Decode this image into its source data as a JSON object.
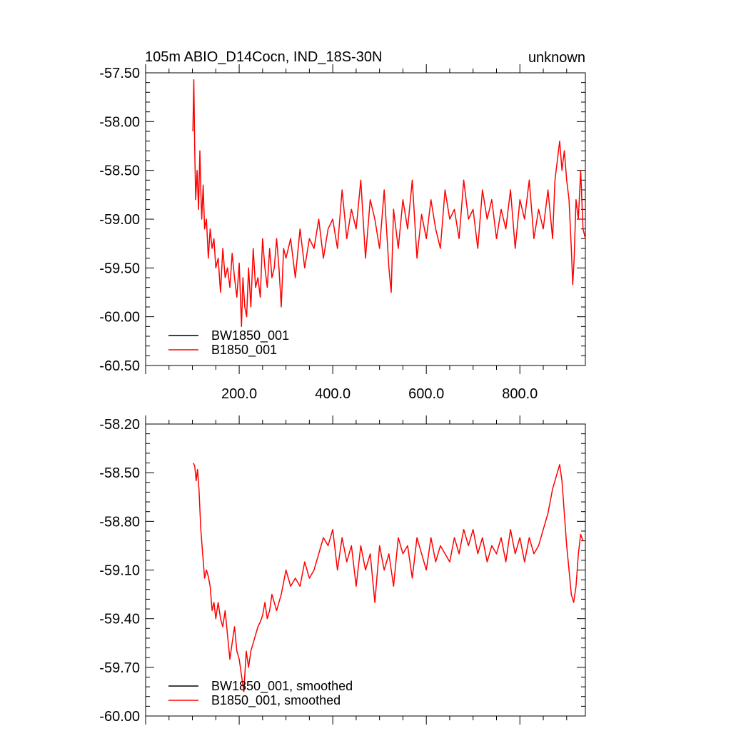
{
  "chart_data": [
    {
      "type": "line",
      "title": "105m ABIO_D14Cocn, IND_18S-30N",
      "subtitle_right": "unknown",
      "xlabel": "",
      "ylabel": "",
      "xlim": [
        0,
        940
      ],
      "ylim": [
        -60.5,
        -57.5
      ],
      "xticks": [
        200,
        400,
        600,
        800
      ],
      "xtick_labels": [
        "200.0",
        "400.0",
        "600.0",
        "800.0"
      ],
      "show_xtick_labels": true,
      "yticks": [
        -57.5,
        -58.0,
        -58.5,
        -59.0,
        -59.5,
        -60.0,
        -60.5
      ],
      "ytick_labels": [
        "-57.50",
        "-58.00",
        "-58.50",
        "-59.00",
        "-59.50",
        "-60.00",
        "-60.50"
      ],
      "grid": false,
      "legend_position": "bottom-left",
      "series": [
        {
          "name": "BW1850_001",
          "color": "#000000",
          "x": [],
          "y": []
        },
        {
          "name": "B1850_001",
          "color": "#ff0000",
          "x": [
            101,
            103,
            105,
            107,
            110,
            113,
            116,
            118,
            120,
            123,
            126,
            130,
            134,
            138,
            142,
            146,
            150,
            155,
            160,
            165,
            170,
            175,
            180,
            185,
            190,
            195,
            200,
            205,
            208,
            212,
            216,
            220,
            225,
            230,
            235,
            240,
            245,
            250,
            255,
            260,
            265,
            270,
            275,
            280,
            285,
            290,
            295,
            300,
            310,
            320,
            330,
            340,
            350,
            360,
            370,
            380,
            390,
            400,
            410,
            420,
            430,
            440,
            450,
            460,
            470,
            480,
            490,
            500,
            510,
            520,
            525,
            530,
            540,
            550,
            560,
            570,
            580,
            590,
            600,
            610,
            620,
            630,
            640,
            650,
            660,
            670,
            680,
            690,
            700,
            710,
            720,
            730,
            740,
            750,
            760,
            770,
            780,
            790,
            800,
            810,
            820,
            830,
            840,
            850,
            860,
            870,
            875,
            880,
            885,
            890,
            895,
            900,
            905,
            910,
            913,
            916,
            920,
            925,
            930,
            935,
            940
          ],
          "y": [
            -58.1,
            -57.57,
            -58.3,
            -58.8,
            -58.5,
            -58.9,
            -58.3,
            -58.7,
            -59.0,
            -58.65,
            -59.1,
            -59.0,
            -59.4,
            -59.1,
            -59.3,
            -59.2,
            -59.5,
            -59.4,
            -59.75,
            -59.3,
            -59.6,
            -59.5,
            -59.7,
            -59.35,
            -59.6,
            -59.8,
            -59.45,
            -60.1,
            -59.6,
            -59.9,
            -60.0,
            -59.5,
            -59.9,
            -59.3,
            -59.7,
            -59.6,
            -59.8,
            -59.2,
            -59.5,
            -59.7,
            -59.3,
            -59.6,
            -59.5,
            -59.2,
            -59.5,
            -59.9,
            -59.3,
            -59.4,
            -59.2,
            -59.6,
            -59.1,
            -59.5,
            -59.2,
            -59.3,
            -59.0,
            -59.4,
            -59.1,
            -59.0,
            -59.3,
            -58.7,
            -59.2,
            -58.9,
            -59.1,
            -58.6,
            -59.4,
            -58.8,
            -59.0,
            -59.3,
            -58.7,
            -59.5,
            -59.75,
            -58.9,
            -59.3,
            -58.8,
            -59.1,
            -58.6,
            -59.4,
            -58.95,
            -59.2,
            -58.8,
            -59.1,
            -59.3,
            -58.7,
            -59.0,
            -58.9,
            -59.2,
            -58.6,
            -59.0,
            -58.9,
            -59.3,
            -58.7,
            -59.0,
            -58.8,
            -59.2,
            -58.9,
            -59.1,
            -58.7,
            -59.3,
            -58.8,
            -59.0,
            -58.6,
            -59.2,
            -58.9,
            -59.1,
            -58.7,
            -59.2,
            -58.6,
            -58.4,
            -58.2,
            -58.5,
            -58.3,
            -58.6,
            -58.8,
            -59.3,
            -59.67,
            -59.4,
            -58.8,
            -59.0,
            -58.5,
            -59.1,
            -59.2
          ]
        }
      ]
    },
    {
      "type": "line",
      "title": "",
      "xlabel": "",
      "ylabel": "",
      "xlim": [
        0,
        940
      ],
      "ylim": [
        -60.0,
        -58.2
      ],
      "xticks": [
        200,
        400,
        600,
        800
      ],
      "show_xtick_labels": false,
      "yticks": [
        -58.2,
        -58.5,
        -58.8,
        -59.1,
        -59.4,
        -59.7,
        -60.0
      ],
      "ytick_labels": [
        "-58.20",
        "-58.50",
        "-58.80",
        "-59.10",
        "-59.40",
        "-59.70",
        "-60.00"
      ],
      "grid": false,
      "legend_position": "bottom-left",
      "series": [
        {
          "name": "BW1850_001, smoothed",
          "color": "#000000",
          "x": [],
          "y": []
        },
        {
          "name": "B1850_001, smoothed",
          "color": "#ff0000",
          "x": [
            102,
            105,
            108,
            111,
            114,
            118,
            122,
            126,
            130,
            134,
            138,
            142,
            146,
            150,
            155,
            160,
            165,
            170,
            175,
            180,
            185,
            190,
            195,
            200,
            205,
            210,
            215,
            220,
            225,
            230,
            235,
            240,
            245,
            250,
            255,
            260,
            265,
            270,
            275,
            280,
            290,
            300,
            310,
            320,
            330,
            340,
            350,
            360,
            370,
            380,
            390,
            400,
            410,
            420,
            430,
            440,
            450,
            460,
            470,
            480,
            490,
            500,
            510,
            520,
            530,
            540,
            550,
            560,
            570,
            580,
            590,
            600,
            610,
            620,
            630,
            640,
            650,
            660,
            670,
            680,
            690,
            700,
            710,
            720,
            730,
            740,
            750,
            760,
            770,
            780,
            790,
            800,
            810,
            820,
            830,
            840,
            850,
            860,
            870,
            880,
            885,
            890,
            895,
            900,
            905,
            910,
            915,
            920,
            925,
            930,
            935
          ],
          "y": [
            -58.44,
            -58.46,
            -58.55,
            -58.48,
            -58.6,
            -58.85,
            -59.0,
            -59.15,
            -59.1,
            -59.14,
            -59.2,
            -59.35,
            -59.3,
            -59.4,
            -59.3,
            -59.4,
            -59.45,
            -59.35,
            -59.5,
            -59.65,
            -59.55,
            -59.45,
            -59.6,
            -59.65,
            -59.75,
            -59.85,
            -59.6,
            -59.7,
            -59.6,
            -59.55,
            -59.5,
            -59.45,
            -59.42,
            -59.38,
            -59.3,
            -59.4,
            -59.35,
            -59.25,
            -59.3,
            -59.35,
            -59.25,
            -59.1,
            -59.2,
            -59.15,
            -59.2,
            -59.05,
            -59.15,
            -59.1,
            -59.0,
            -58.9,
            -58.95,
            -58.85,
            -59.1,
            -58.9,
            -59.05,
            -58.95,
            -59.2,
            -58.95,
            -59.1,
            -59.0,
            -59.3,
            -58.95,
            -59.1,
            -59.0,
            -59.2,
            -58.9,
            -59.0,
            -58.95,
            -59.15,
            -58.9,
            -59.0,
            -59.1,
            -58.9,
            -59.05,
            -58.95,
            -59.0,
            -59.05,
            -58.9,
            -59.0,
            -58.85,
            -58.95,
            -58.85,
            -59.0,
            -58.9,
            -59.05,
            -58.95,
            -59.0,
            -58.9,
            -59.05,
            -58.85,
            -59.0,
            -58.9,
            -59.05,
            -58.9,
            -59.0,
            -58.95,
            -58.85,
            -58.75,
            -58.6,
            -58.5,
            -58.45,
            -58.55,
            -58.75,
            -58.95,
            -59.1,
            -59.25,
            -59.3,
            -59.2,
            -59.0,
            -58.88,
            -58.92
          ]
        }
      ]
    }
  ]
}
